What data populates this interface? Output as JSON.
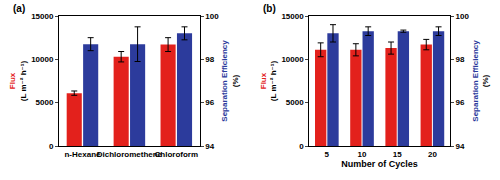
{
  "chart_data": [
    {
      "type": "bar",
      "panel_label": "(a)",
      "categories": [
        "n-Hexane",
        "Dichloromethene",
        "Chloroform"
      ],
      "ylabel": "Flux (L m⁻² h⁻¹)",
      "y2label": "Separation Efficiency (%)",
      "ylim": [
        0,
        15000
      ],
      "yticks": [
        0,
        5000,
        10000,
        15000
      ],
      "y2lim": [
        94,
        100
      ],
      "y2ticks": [
        94,
        96,
        98,
        100
      ],
      "grid": false,
      "series": [
        {
          "color": "#e3211c",
          "values": [
            6100,
            10300,
            11700
          ],
          "errors": [
            250,
            600,
            800
          ]
        },
        {
          "color": "#2c3b9c",
          "axis": "y2",
          "values": [
            98.7,
            98.7,
            99.2
          ],
          "errors": [
            0.3,
            0.8,
            0.3
          ]
        }
      ]
    },
    {
      "type": "bar",
      "panel_label": "(b)",
      "categories": [
        "5",
        "10",
        "15",
        "20"
      ],
      "xlabel": "Number of Cycles",
      "ylabel": "Flux (L m⁻² h⁻¹)",
      "y2label": "Separation Efficiency (%)",
      "ylim": [
        0,
        15000
      ],
      "yticks": [
        0,
        5000,
        10000,
        15000
      ],
      "y2lim": [
        94,
        100
      ],
      "y2ticks": [
        94,
        96,
        98,
        100
      ],
      "grid": false,
      "series": [
        {
          "color": "#e3211c",
          "values": [
            11100,
            11100,
            11300,
            11700
          ],
          "errors": [
            800,
            700,
            700,
            600
          ]
        },
        {
          "color": "#2c3b9c",
          "axis": "y2",
          "values": [
            99.2,
            99.3,
            99.3,
            99.3
          ],
          "errors": [
            0.4,
            0.2,
            0.05,
            0.2
          ]
        }
      ]
    }
  ]
}
